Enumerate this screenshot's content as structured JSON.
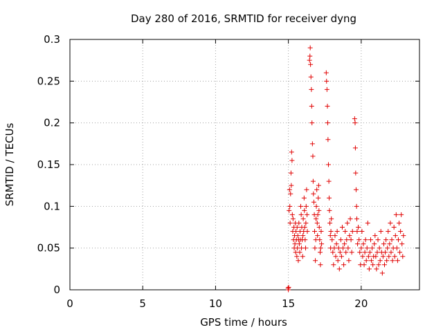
{
  "chart_data": {
    "type": "scatter",
    "title": "Day 280 of 2016, SRMTID for receiver dyng",
    "xlabel": "GPS time / hours",
    "ylabel": "SRMTID / TECUs",
    "xlim": [
      0,
      24
    ],
    "ylim": [
      0,
      0.3
    ],
    "xticks": [
      0,
      5,
      10,
      15,
      20
    ],
    "yticks": [
      0,
      0.05,
      0.1,
      0.15,
      0.2,
      0.25,
      0.3
    ],
    "ytick_labels": [
      "0",
      "0.05",
      "0.1",
      "0.15",
      "0.2",
      "0.25",
      "0.3"
    ],
    "grid": true,
    "marker": "+",
    "color": "#e00000",
    "series": [
      {
        "name": "SRMTID",
        "points": [
          [
            14.98,
            0.002
          ],
          [
            15.0,
            0.0
          ],
          [
            15.02,
            0.003
          ],
          [
            15.05,
            0.095
          ],
          [
            15.08,
            0.12
          ],
          [
            15.1,
            0.1
          ],
          [
            15.12,
            0.08
          ],
          [
            15.15,
            0.115
          ],
          [
            15.18,
            0.14
          ],
          [
            15.2,
            0.125
          ],
          [
            15.22,
            0.165
          ],
          [
            15.25,
            0.155
          ],
          [
            15.27,
            0.09
          ],
          [
            15.3,
            0.07
          ],
          [
            15.32,
            0.085
          ],
          [
            15.35,
            0.06
          ],
          [
            15.38,
            0.075
          ],
          [
            15.4,
            0.05
          ],
          [
            15.42,
            0.065
          ],
          [
            15.45,
            0.055
          ],
          [
            15.48,
            0.08
          ],
          [
            15.5,
            0.045
          ],
          [
            15.52,
            0.07
          ],
          [
            15.55,
            0.06
          ],
          [
            15.58,
            0.04
          ],
          [
            15.6,
            0.075
          ],
          [
            15.62,
            0.05
          ],
          [
            15.65,
            0.065
          ],
          [
            15.68,
            0.035
          ],
          [
            15.7,
            0.06
          ],
          [
            15.72,
            0.08
          ],
          [
            15.75,
            0.055
          ],
          [
            15.78,
            0.045
          ],
          [
            15.8,
            0.07
          ],
          [
            15.82,
            0.06
          ],
          [
            15.85,
            0.1
          ],
          [
            15.88,
            0.09
          ],
          [
            15.9,
            0.05
          ],
          [
            15.92,
            0.075
          ],
          [
            15.95,
            0.06
          ],
          [
            15.98,
            0.04
          ],
          [
            16.0,
            0.065
          ],
          [
            16.02,
            0.085
          ],
          [
            16.05,
            0.07
          ],
          [
            16.08,
            0.11
          ],
          [
            16.1,
            0.095
          ],
          [
            16.12,
            0.075
          ],
          [
            16.15,
            0.06
          ],
          [
            16.18,
            0.05
          ],
          [
            16.2,
            0.08
          ],
          [
            16.22,
            0.1
          ],
          [
            16.25,
            0.12
          ],
          [
            16.28,
            0.09
          ],
          [
            16.3,
            0.07
          ],
          [
            16.45,
            0.275
          ],
          [
            16.48,
            0.28
          ],
          [
            16.5,
            0.29
          ],
          [
            16.52,
            0.27
          ],
          [
            16.55,
            0.255
          ],
          [
            16.58,
            0.24
          ],
          [
            16.6,
            0.22
          ],
          [
            16.62,
            0.2
          ],
          [
            16.65,
            0.175
          ],
          [
            16.68,
            0.16
          ],
          [
            16.7,
            0.13
          ],
          [
            16.72,
            0.115
          ],
          [
            16.75,
            0.105
          ],
          [
            16.78,
            0.09
          ],
          [
            16.8,
            0.07
          ],
          [
            16.82,
            0.05
          ],
          [
            16.85,
            0.035
          ],
          [
            16.88,
            0.06
          ],
          [
            16.9,
            0.085
          ],
          [
            16.92,
            0.1
          ],
          [
            16.95,
            0.12
          ],
          [
            16.98,
            0.08
          ],
          [
            17.0,
            0.065
          ],
          [
            17.02,
            0.09
          ],
          [
            17.05,
            0.11
          ],
          [
            17.08,
            0.125
          ],
          [
            17.1,
            0.095
          ],
          [
            17.12,
            0.075
          ],
          [
            17.15,
            0.06
          ],
          [
            17.18,
            0.045
          ],
          [
            17.2,
            0.03
          ],
          [
            17.22,
            0.05
          ],
          [
            17.25,
            0.07
          ],
          [
            17.28,
            0.055
          ],
          [
            17.6,
            0.26
          ],
          [
            17.62,
            0.25
          ],
          [
            17.65,
            0.24
          ],
          [
            17.68,
            0.22
          ],
          [
            17.7,
            0.2
          ],
          [
            17.72,
            0.18
          ],
          [
            17.75,
            0.15
          ],
          [
            17.78,
            0.13
          ],
          [
            17.8,
            0.11
          ],
          [
            17.82,
            0.095
          ],
          [
            17.85,
            0.08
          ],
          [
            17.88,
            0.065
          ],
          [
            17.9,
            0.05
          ],
          [
            17.92,
            0.07
          ],
          [
            17.95,
            0.085
          ],
          [
            18.0,
            0.06
          ],
          [
            18.05,
            0.045
          ],
          [
            18.1,
            0.03
          ],
          [
            18.15,
            0.05
          ],
          [
            18.2,
            0.065
          ],
          [
            18.25,
            0.04
          ],
          [
            18.3,
            0.055
          ],
          [
            18.35,
            0.07
          ],
          [
            18.4,
            0.035
          ],
          [
            18.45,
            0.05
          ],
          [
            18.5,
            0.025
          ],
          [
            18.55,
            0.045
          ],
          [
            18.6,
            0.06
          ],
          [
            18.65,
            0.04
          ],
          [
            18.7,
            0.075
          ],
          [
            18.75,
            0.05
          ],
          [
            18.8,
            0.03
          ],
          [
            18.85,
            0.055
          ],
          [
            18.9,
            0.07
          ],
          [
            18.95,
            0.045
          ],
          [
            19.0,
            0.06
          ],
          [
            19.05,
            0.08
          ],
          [
            19.1,
            0.05
          ],
          [
            19.15,
            0.035
          ],
          [
            19.2,
            0.065
          ],
          [
            19.25,
            0.085
          ],
          [
            19.3,
            0.06
          ],
          [
            19.35,
            0.045
          ],
          [
            19.4,
            0.07
          ],
          [
            19.55,
            0.205
          ],
          [
            19.58,
            0.2
          ],
          [
            19.6,
            0.17
          ],
          [
            19.62,
            0.14
          ],
          [
            19.65,
            0.12
          ],
          [
            19.68,
            0.1
          ],
          [
            19.7,
            0.085
          ],
          [
            19.72,
            0.07
          ],
          [
            19.75,
            0.055
          ],
          [
            19.8,
            0.075
          ],
          [
            19.85,
            0.06
          ],
          [
            19.9,
            0.045
          ],
          [
            19.95,
            0.03
          ],
          [
            20.0,
            0.05
          ],
          [
            20.05,
            0.07
          ],
          [
            20.1,
            0.04
          ],
          [
            20.15,
            0.055
          ],
          [
            20.2,
            0.03
          ],
          [
            20.25,
            0.045
          ],
          [
            20.3,
            0.06
          ],
          [
            20.35,
            0.035
          ],
          [
            20.4,
            0.05
          ],
          [
            20.45,
            0.08
          ],
          [
            20.5,
            0.04
          ],
          [
            20.55,
            0.025
          ],
          [
            20.6,
            0.045
          ],
          [
            20.65,
            0.06
          ],
          [
            20.7,
            0.035
          ],
          [
            20.75,
            0.05
          ],
          [
            20.8,
            0.03
          ],
          [
            20.85,
            0.04
          ],
          [
            20.9,
            0.055
          ],
          [
            20.95,
            0.065
          ],
          [
            21.0,
            0.04
          ],
          [
            21.05,
            0.025
          ],
          [
            21.1,
            0.045
          ],
          [
            21.15,
            0.06
          ],
          [
            21.2,
            0.03
          ],
          [
            21.25,
            0.05
          ],
          [
            21.3,
            0.035
          ],
          [
            21.35,
            0.07
          ],
          [
            21.4,
            0.045
          ],
          [
            21.45,
            0.02
          ],
          [
            21.5,
            0.04
          ],
          [
            21.55,
            0.055
          ],
          [
            21.6,
            0.03
          ],
          [
            21.65,
            0.045
          ],
          [
            21.7,
            0.06
          ],
          [
            21.75,
            0.035
          ],
          [
            21.8,
            0.05
          ],
          [
            21.85,
            0.07
          ],
          [
            21.9,
            0.04
          ],
          [
            21.95,
            0.055
          ],
          [
            22.0,
            0.08
          ],
          [
            22.05,
            0.045
          ],
          [
            22.1,
            0.06
          ],
          [
            22.15,
            0.035
          ],
          [
            22.2,
            0.05
          ],
          [
            22.25,
            0.075
          ],
          [
            22.3,
            0.04
          ],
          [
            22.35,
            0.065
          ],
          [
            22.4,
            0.09
          ],
          [
            22.45,
            0.05
          ],
          [
            22.5,
            0.035
          ],
          [
            22.55,
            0.06
          ],
          [
            22.6,
            0.08
          ],
          [
            22.65,
            0.045
          ],
          [
            22.7,
            0.07
          ],
          [
            22.75,
            0.09
          ],
          [
            22.8,
            0.055
          ],
          [
            22.85,
            0.04
          ],
          [
            22.9,
            0.065
          ]
        ]
      }
    ]
  }
}
